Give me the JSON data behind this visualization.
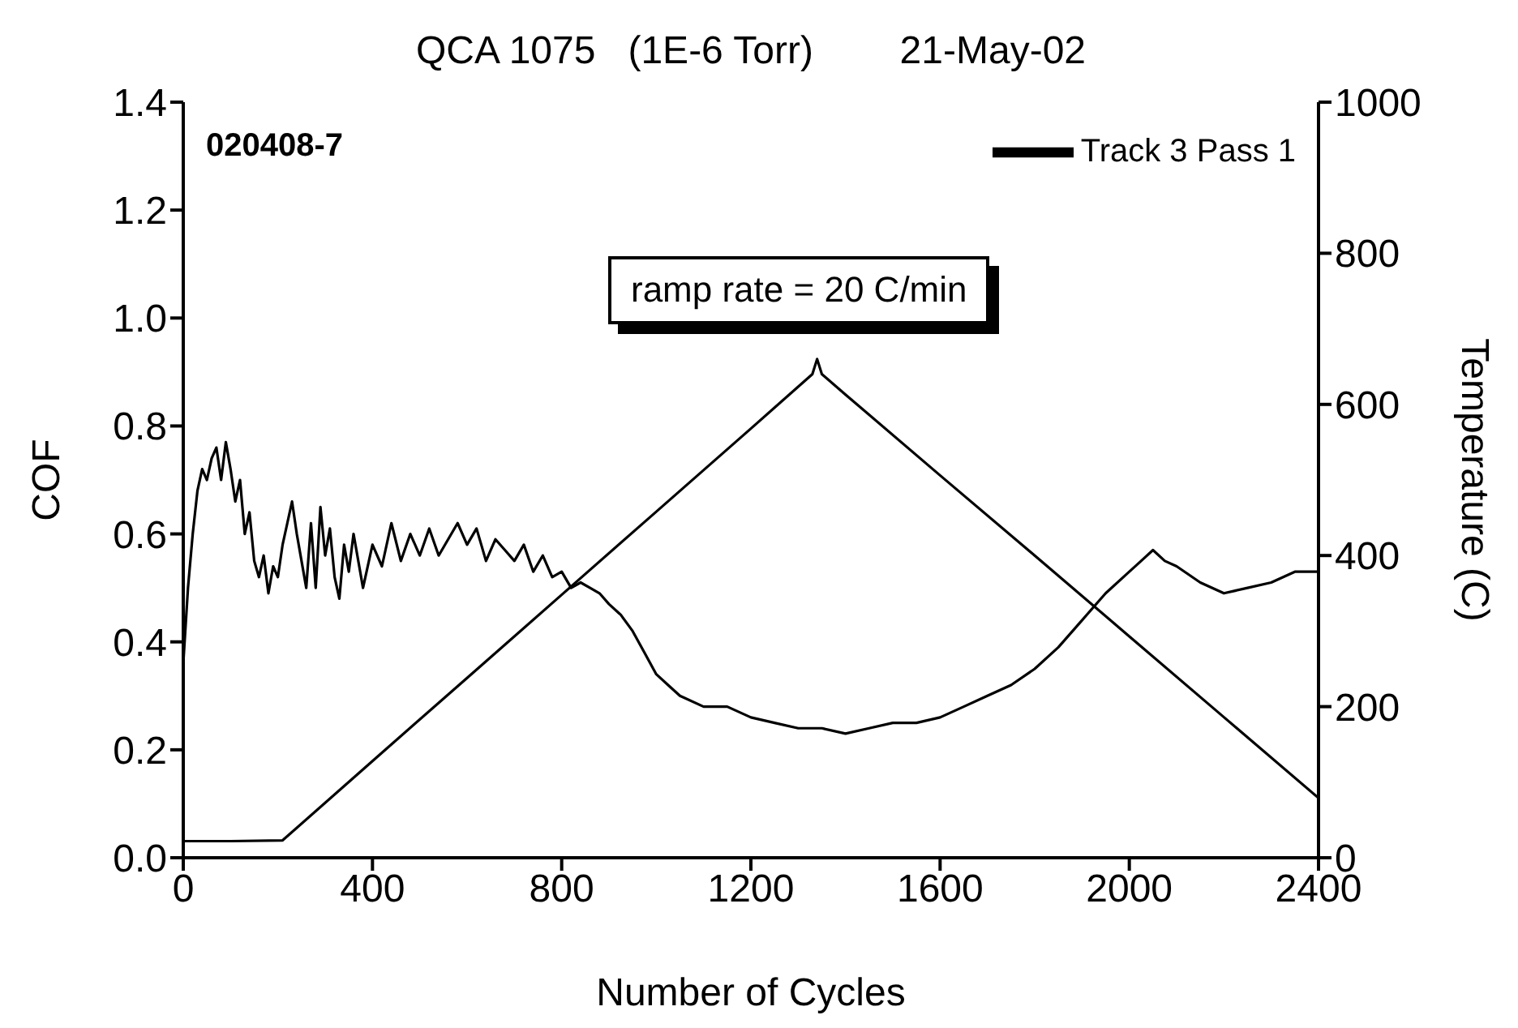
{
  "chart_data": {
    "type": "line",
    "title": "QCA 1075   (1E-6 Torr)        21-May-02",
    "xlabel": "Number of Cycles",
    "ylabel": "COF",
    "y2label": "Temperature (C)",
    "annotations": [
      "020408-7",
      "ramp rate = 20 C/min"
    ],
    "series": [
      {
        "name": "Track 3  Pass 1",
        "color": "#000000",
        "x": [
          0,
          10,
          20,
          30,
          40,
          50,
          60,
          70,
          80,
          90,
          100,
          110,
          120,
          130,
          140,
          150,
          160,
          170,
          180,
          190,
          200,
          210,
          220,
          230,
          240,
          250,
          260,
          270,
          280,
          290,
          300,
          310,
          320,
          330,
          340,
          350,
          360,
          380,
          400,
          420,
          440,
          460,
          480,
          500,
          520,
          540,
          560,
          580,
          600,
          620,
          640,
          660,
          680,
          700,
          720,
          740,
          760,
          780,
          800,
          820,
          840,
          860,
          880,
          900,
          925,
          950,
          975,
          1000,
          1025,
          1050,
          1100,
          1150,
          1200,
          1250,
          1300,
          1350,
          1400,
          1450,
          1500,
          1550,
          1600,
          1650,
          1700,
          1750,
          1800,
          1850,
          1900,
          1950,
          2000,
          2025,
          2050,
          2075,
          2100,
          2150,
          2200,
          2250,
          2300,
          2350,
          2400
        ],
        "values": [
          0.36,
          0.5,
          0.6,
          0.68,
          0.72,
          0.7,
          0.74,
          0.76,
          0.7,
          0.77,
          0.72,
          0.66,
          0.7,
          0.6,
          0.64,
          0.55,
          0.52,
          0.56,
          0.49,
          0.54,
          0.52,
          0.58,
          0.62,
          0.66,
          0.6,
          0.55,
          0.5,
          0.62,
          0.5,
          0.65,
          0.56,
          0.61,
          0.52,
          0.48,
          0.58,
          0.53,
          0.6,
          0.5,
          0.58,
          0.54,
          0.62,
          0.55,
          0.6,
          0.56,
          0.61,
          0.56,
          0.59,
          0.62,
          0.58,
          0.61,
          0.55,
          0.59,
          0.57,
          0.55,
          0.58,
          0.53,
          0.56,
          0.52,
          0.53,
          0.5,
          0.51,
          0.5,
          0.49,
          0.47,
          0.45,
          0.42,
          0.38,
          0.34,
          0.32,
          0.3,
          0.28,
          0.28,
          0.26,
          0.25,
          0.24,
          0.24,
          0.23,
          0.24,
          0.25,
          0.25,
          0.26,
          0.28,
          0.3,
          0.32,
          0.35,
          0.39,
          0.44,
          0.49,
          0.53,
          0.55,
          0.57,
          0.55,
          0.54,
          0.51,
          0.49,
          0.5,
          0.51,
          0.53,
          0.53
        ]
      },
      {
        "color": "#000000",
        "axis": "y2",
        "x": [
          0,
          100,
          210,
          400,
          600,
          800,
          1000,
          1200,
          1330,
          1340,
          1350,
          1400,
          1600,
          1800,
          2000,
          2200,
          2400
        ],
        "values": [
          22,
          22,
          23,
          128,
          238,
          348,
          458,
          568,
          640,
          660,
          640,
          613,
          506,
          400,
          293,
          186,
          79
        ]
      }
    ],
    "xlim": [
      0,
      2400
    ],
    "xticks": [
      0,
      400,
      800,
      1200,
      1600,
      2000,
      2400
    ],
    "ylim": [
      0,
      1.4
    ],
    "yticks": [
      {
        "value": 0,
        "label": "0.0"
      },
      {
        "value": 0.2,
        "label": "0.2"
      },
      {
        "value": 0.4,
        "label": "0.4"
      },
      {
        "value": 0.6,
        "label": "0.6"
      },
      {
        "value": 0.8,
        "label": "0.8"
      },
      {
        "value": 1,
        "label": "1.0"
      },
      {
        "value": 1.2,
        "label": "1.2"
      },
      {
        "value": 1.4,
        "label": "1.4"
      }
    ],
    "y2lim": [
      0,
      1000
    ],
    "y2ticks": [
      0,
      200,
      400,
      600,
      800,
      1000
    ],
    "legend": "top right",
    "grid": false,
    "marker": "none",
    "line_style": "solid"
  }
}
